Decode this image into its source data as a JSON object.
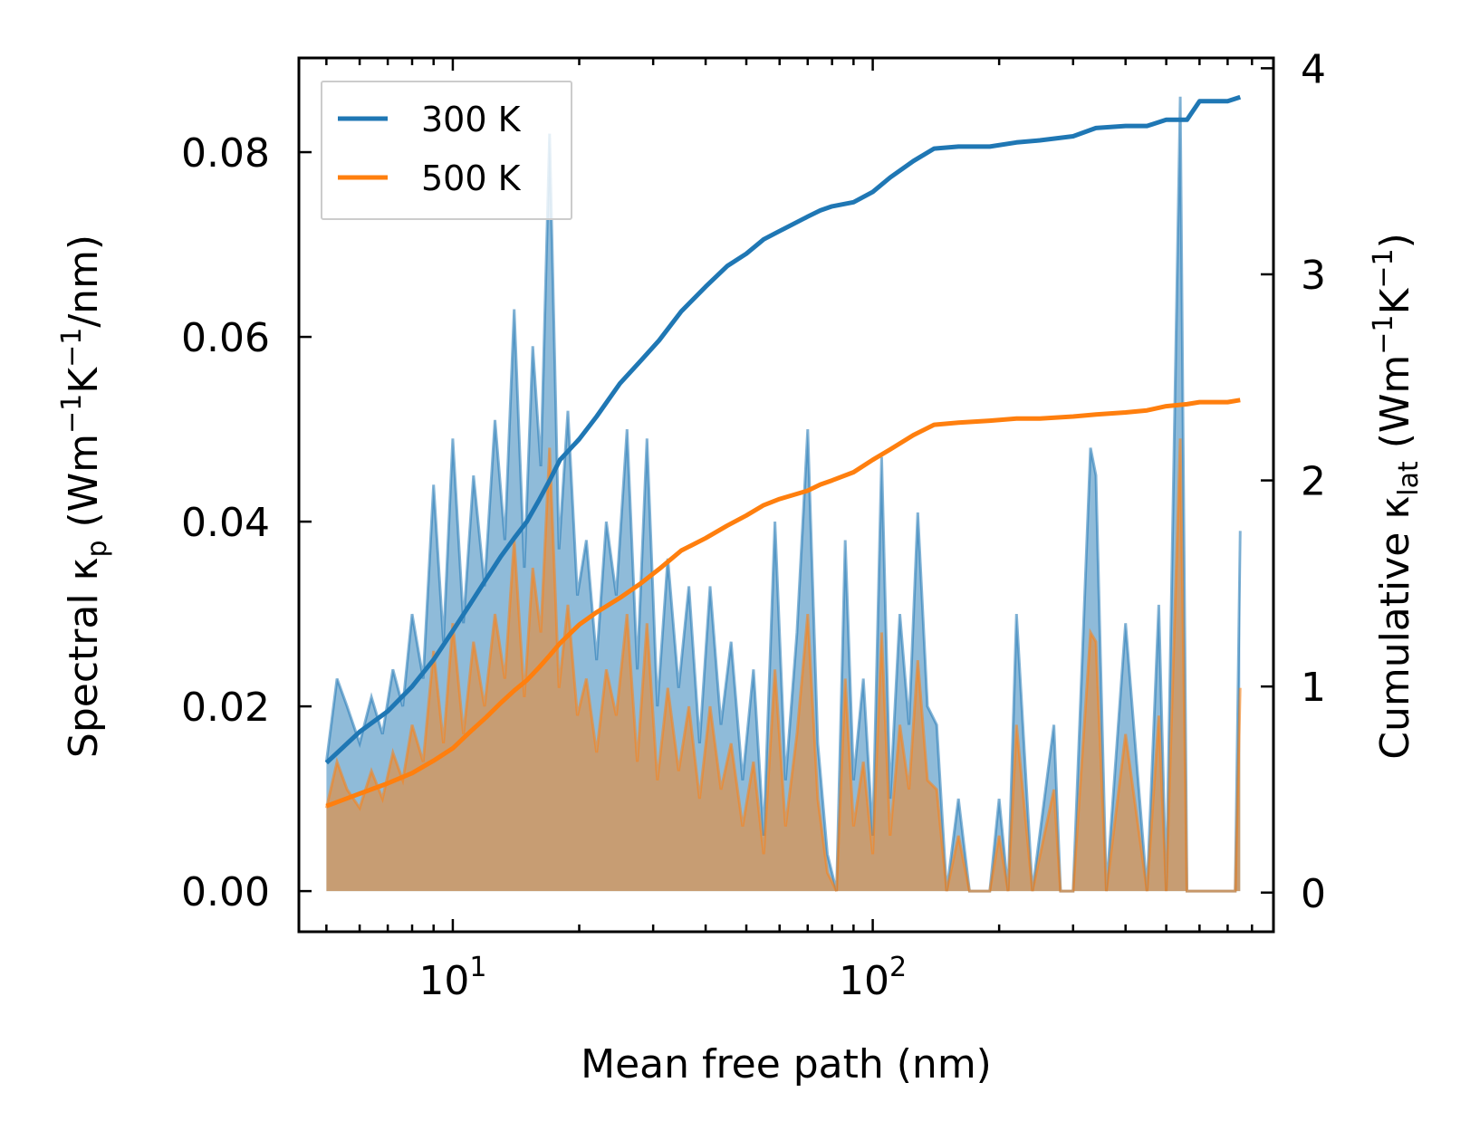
{
  "chart_data": {
    "type": "line",
    "xscale": "log",
    "xlim": [
      4.3,
      900
    ],
    "ylim_left": [
      -0.0044,
      0.0902
    ],
    "ylim_right": [
      -0.19,
      4.05
    ],
    "xlabel": "Mean free path (nm)",
    "ylabel_left": {
      "base": "Spectral κ",
      "sub": "p",
      "unit_open": " (Wm",
      "sup1": "−1",
      "mid": "K",
      "sup2": "−1",
      "tail": "/nm)"
    },
    "ylabel_right": {
      "base": "Cumulative κ",
      "sub": "lat",
      "unit_open": " (Wm",
      "sup1": "−1",
      "mid": "K",
      "sup2": "−1",
      "tail": ")"
    },
    "x_ticks": [
      {
        "value": 10,
        "base": "10",
        "exp": "1"
      },
      {
        "value": 100,
        "base": "10",
        "exp": "2"
      }
    ],
    "y_left_ticks": [
      {
        "value": 0.0,
        "label": "0.00"
      },
      {
        "value": 0.02,
        "label": "0.02"
      },
      {
        "value": 0.04,
        "label": "0.04"
      },
      {
        "value": 0.06,
        "label": "0.06"
      },
      {
        "value": 0.08,
        "label": "0.08"
      }
    ],
    "y_right_ticks": [
      {
        "value": 0,
        "label": "0"
      },
      {
        "value": 1,
        "label": "1"
      },
      {
        "value": 2,
        "label": "2"
      },
      {
        "value": 3,
        "label": "3"
      },
      {
        "value": 4,
        "label": "4"
      }
    ],
    "legend": {
      "location": "upper-left",
      "entries": [
        "300 K",
        "500 K"
      ]
    },
    "series": [
      {
        "name": "300 K",
        "color": "#1f77b4",
        "spectral_x": [
          5.0,
          5.3,
          5.6,
          6.0,
          6.4,
          6.8,
          7.2,
          7.6,
          8.0,
          8.5,
          9.0,
          9.5,
          10.0,
          10.6,
          11.2,
          11.9,
          12.6,
          13.3,
          14.0,
          14.8,
          15.5,
          16.2,
          17.0,
          17.9,
          18.8,
          19.8,
          20.8,
          22.0,
          23.2,
          24.5,
          26.0,
          27.5,
          29.0,
          30.7,
          32.5,
          34.5,
          36.5,
          38.7,
          41.0,
          43.5,
          46.0,
          49.0,
          52.0,
          55.0,
          58.5,
          62.0,
          66.0,
          70.0,
          74.0,
          78.0,
          82.0,
          86.0,
          90.0,
          95.0,
          100.0,
          105.0,
          110.0,
          116.0,
          122.0,
          128.0,
          135.0,
          142.0,
          150.0,
          160.0,
          170.0,
          190.0,
          200.0,
          210.0,
          220.0,
          240.0,
          270.0,
          280.0,
          300.0,
          330.0,
          340.0,
          360.0,
          400.0,
          450.0,
          480.0,
          500.0,
          540.0,
          560.0,
          580.0,
          600.0,
          650.0,
          700.0,
          730.0,
          750.0
        ],
        "spectral_y": [
          0.014,
          0.023,
          0.02,
          0.016,
          0.021,
          0.017,
          0.024,
          0.02,
          0.03,
          0.023,
          0.044,
          0.027,
          0.049,
          0.029,
          0.045,
          0.033,
          0.051,
          0.038,
          0.063,
          0.035,
          0.059,
          0.046,
          0.082,
          0.037,
          0.052,
          0.032,
          0.038,
          0.025,
          0.04,
          0.032,
          0.05,
          0.024,
          0.049,
          0.02,
          0.036,
          0.022,
          0.033,
          0.016,
          0.033,
          0.018,
          0.027,
          0.012,
          0.024,
          0.006,
          0.04,
          0.012,
          0.028,
          0.05,
          0.016,
          0.004,
          0.0,
          0.038,
          0.012,
          0.023,
          0.006,
          0.047,
          0.01,
          0.03,
          0.018,
          0.041,
          0.02,
          0.018,
          0.0,
          0.01,
          0.0,
          0.0,
          0.01,
          0.0,
          0.03,
          0.0,
          0.018,
          0.0,
          0.0,
          0.048,
          0.045,
          0.0,
          0.029,
          0.0,
          0.031,
          0.0,
          0.086,
          0.0,
          0.0,
          0.0,
          0.0,
          0.0,
          0.0,
          0.039
        ],
        "cumulative_x": [
          5.0,
          6.0,
          7.0,
          8.0,
          9.0,
          10.0,
          11.0,
          12.0,
          13.0,
          14.0,
          15.0,
          16.0,
          17.0,
          18.0,
          20.0,
          22.0,
          25.0,
          28.0,
          31.0,
          35.0,
          40.0,
          45.0,
          50.0,
          55.0,
          60.0,
          70.0,
          75.0,
          80.0,
          90.0,
          100.0,
          110.0,
          125.0,
          140.0,
          160.0,
          190.0,
          220.0,
          250.0,
          300.0,
          340.0,
          400.0,
          450.0,
          500.0,
          560.0,
          600.0,
          700.0,
          750.0
        ],
        "cumulative_y": [
          0.63,
          0.78,
          0.88,
          1.0,
          1.13,
          1.27,
          1.4,
          1.52,
          1.63,
          1.72,
          1.8,
          1.9,
          2.0,
          2.1,
          2.2,
          2.31,
          2.47,
          2.58,
          2.68,
          2.82,
          2.94,
          3.04,
          3.1,
          3.17,
          3.21,
          3.28,
          3.31,
          3.33,
          3.35,
          3.4,
          3.47,
          3.55,
          3.61,
          3.62,
          3.62,
          3.64,
          3.65,
          3.67,
          3.71,
          3.72,
          3.72,
          3.75,
          3.75,
          3.84,
          3.84,
          3.86
        ]
      },
      {
        "name": "500 K",
        "color": "#ff7f0e",
        "spectral_x": [
          5.0,
          5.3,
          5.6,
          6.0,
          6.4,
          6.8,
          7.2,
          7.6,
          8.0,
          8.5,
          9.0,
          9.5,
          10.0,
          10.6,
          11.2,
          11.9,
          12.6,
          13.3,
          14.0,
          14.8,
          15.5,
          16.2,
          17.0,
          17.9,
          18.8,
          19.8,
          20.8,
          22.0,
          23.2,
          24.5,
          26.0,
          27.5,
          29.0,
          30.7,
          32.5,
          34.5,
          36.5,
          38.7,
          41.0,
          43.5,
          46.0,
          49.0,
          52.0,
          55.0,
          58.5,
          62.0,
          66.0,
          70.0,
          74.0,
          78.0,
          82.0,
          86.0,
          90.0,
          95.0,
          100.0,
          105.0,
          110.0,
          116.0,
          122.0,
          128.0,
          135.0,
          142.0,
          150.0,
          160.0,
          170.0,
          190.0,
          200.0,
          210.0,
          220.0,
          240.0,
          270.0,
          280.0,
          300.0,
          330.0,
          340.0,
          360.0,
          400.0,
          450.0,
          480.0,
          500.0,
          540.0,
          560.0,
          580.0,
          600.0,
          650.0,
          700.0,
          730.0,
          750.0
        ],
        "spectral_y": [
          0.009,
          0.014,
          0.011,
          0.009,
          0.013,
          0.01,
          0.015,
          0.012,
          0.018,
          0.014,
          0.026,
          0.016,
          0.029,
          0.017,
          0.027,
          0.02,
          0.03,
          0.023,
          0.038,
          0.021,
          0.035,
          0.028,
          0.048,
          0.022,
          0.031,
          0.019,
          0.023,
          0.015,
          0.024,
          0.019,
          0.03,
          0.014,
          0.029,
          0.012,
          0.022,
          0.013,
          0.02,
          0.01,
          0.02,
          0.011,
          0.016,
          0.007,
          0.014,
          0.004,
          0.024,
          0.007,
          0.017,
          0.03,
          0.01,
          0.002,
          0.0,
          0.023,
          0.007,
          0.014,
          0.004,
          0.028,
          0.006,
          0.018,
          0.011,
          0.025,
          0.012,
          0.011,
          0.0,
          0.006,
          0.0,
          0.0,
          0.006,
          0.0,
          0.018,
          0.0,
          0.011,
          0.0,
          0.0,
          0.028,
          0.027,
          0.0,
          0.017,
          0.0,
          0.019,
          0.0,
          0.049,
          0.0,
          0.0,
          0.0,
          0.0,
          0.0,
          0.0,
          0.022
        ],
        "cumulative_x": [
          5.0,
          6.0,
          7.0,
          8.0,
          9.0,
          10.0,
          11.0,
          12.0,
          13.0,
          14.0,
          15.0,
          16.0,
          17.0,
          18.0,
          20.0,
          22.0,
          25.0,
          28.0,
          31.0,
          35.0,
          40.0,
          45.0,
          50.0,
          55.0,
          60.0,
          70.0,
          75.0,
          80.0,
          90.0,
          100.0,
          110.0,
          125.0,
          140.0,
          160.0,
          190.0,
          220.0,
          250.0,
          300.0,
          340.0,
          400.0,
          450.0,
          500.0,
          560.0,
          600.0,
          700.0,
          750.0
        ],
        "cumulative_y": [
          0.42,
          0.48,
          0.53,
          0.58,
          0.64,
          0.7,
          0.78,
          0.85,
          0.92,
          0.98,
          1.03,
          1.09,
          1.15,
          1.21,
          1.3,
          1.36,
          1.43,
          1.5,
          1.57,
          1.66,
          1.72,
          1.78,
          1.83,
          1.88,
          1.91,
          1.95,
          1.98,
          2.0,
          2.04,
          2.1,
          2.15,
          2.22,
          2.27,
          2.28,
          2.29,
          2.3,
          2.3,
          2.31,
          2.32,
          2.33,
          2.34,
          2.36,
          2.37,
          2.38,
          2.38,
          2.39
        ]
      }
    ]
  }
}
